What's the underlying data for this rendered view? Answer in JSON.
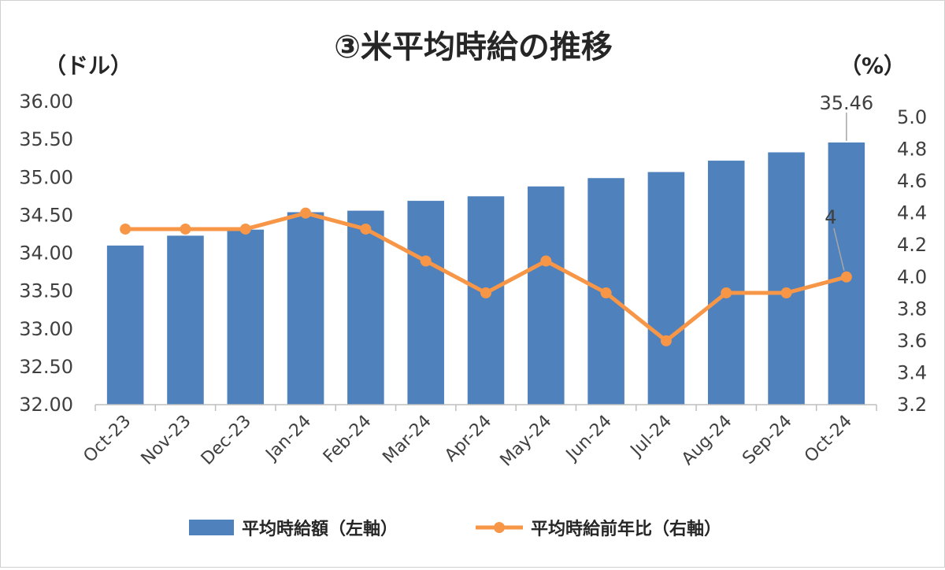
{
  "chart_data": {
    "type": "bar",
    "title": "③米平均時給の推移",
    "left_unit": "（ドル）",
    "right_unit": "（%）",
    "categories": [
      "Oct-23",
      "Nov-23",
      "Dec-23",
      "Jan-24",
      "Feb-24",
      "Mar-24",
      "Apr-24",
      "May-24",
      "Jun-24",
      "Jul-24",
      "Aug-24",
      "Sep-24",
      "Oct-24"
    ],
    "series": [
      {
        "name": "平均時給額（左軸）",
        "type": "bar",
        "axis": "left",
        "color": "#4F81BD",
        "values": [
          34.1,
          34.23,
          34.31,
          34.54,
          34.56,
          34.69,
          34.75,
          34.88,
          34.99,
          35.07,
          35.22,
          35.33,
          35.46
        ]
      },
      {
        "name": "平均時給前年比（右軸）",
        "type": "line",
        "axis": "right",
        "color": "#F79646",
        "values": [
          4.3,
          4.3,
          4.3,
          4.4,
          4.3,
          4.1,
          3.9,
          4.1,
          3.9,
          3.6,
          3.9,
          3.9,
          4.0
        ]
      }
    ],
    "y_left": {
      "min": 32.0,
      "max": 36.0,
      "step": 0.5,
      "tick_labels": [
        "32.00",
        "32.50",
        "33.00",
        "33.50",
        "34.00",
        "34.50",
        "35.00",
        "35.50",
        "36.00"
      ]
    },
    "y_right": {
      "min": 3.2,
      "max": 5.0,
      "step": 0.2,
      "tick_labels": [
        "3.2",
        "3.4",
        "3.6",
        "3.8",
        "4.0",
        "4.2",
        "4.4",
        "4.6",
        "4.8",
        "5.0"
      ]
    },
    "data_labels": [
      {
        "series": 0,
        "index": 12,
        "text": "35.46"
      },
      {
        "series": 1,
        "index": 12,
        "text": "4"
      }
    ],
    "grid": false,
    "legend_position": "bottom"
  }
}
